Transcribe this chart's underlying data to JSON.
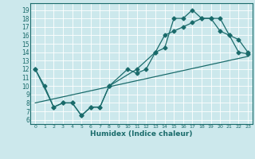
{
  "title": "",
  "xlabel": "Humidex (Indice chaleur)",
  "bg_color": "#cce8ec",
  "line_color": "#1a6b6b",
  "grid_color": "#ffffff",
  "xlim": [
    -0.5,
    23.5
  ],
  "ylim": [
    5.5,
    19.8
  ],
  "yticks": [
    6,
    7,
    8,
    9,
    10,
    11,
    12,
    13,
    14,
    15,
    16,
    17,
    18,
    19
  ],
  "xticks": [
    0,
    1,
    2,
    3,
    4,
    5,
    6,
    7,
    8,
    9,
    10,
    11,
    12,
    13,
    14,
    15,
    16,
    17,
    18,
    19,
    20,
    21,
    22,
    23
  ],
  "line1_x": [
    0,
    1,
    2,
    3,
    4,
    5,
    6,
    7,
    8,
    10,
    11,
    12,
    13,
    14,
    15,
    16,
    17,
    18,
    19,
    20,
    21,
    22,
    23
  ],
  "line1_y": [
    12,
    10,
    7.5,
    8,
    8,
    6.5,
    7.5,
    7.5,
    10,
    12,
    11.5,
    12,
    14,
    16,
    16.5,
    17,
    17.5,
    18,
    18,
    18,
    16,
    15.5,
    14
  ],
  "line2_x": [
    0,
    2,
    3,
    4,
    5,
    6,
    7,
    8,
    11,
    13,
    14,
    15,
    16,
    17,
    18,
    19,
    20,
    21,
    22,
    23
  ],
  "line2_y": [
    12,
    7.5,
    8,
    8,
    6.5,
    7.5,
    7.5,
    10,
    12,
    14,
    14.5,
    18,
    18,
    19,
    18,
    18,
    16.5,
    16,
    14,
    13.8
  ],
  "line3_x": [
    0,
    23
  ],
  "line3_y": [
    8,
    13.5
  ],
  "markersize": 2.5
}
